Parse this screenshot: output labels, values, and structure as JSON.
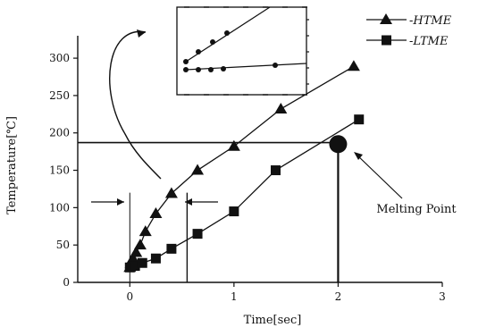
{
  "chart_data": {
    "type": "line",
    "title": "",
    "xlabel": "Time[sec]",
    "ylabel": "Temperature[℃]",
    "xlim": [
      -0.5,
      3
    ],
    "ylim": [
      0,
      330
    ],
    "x_ticks": [
      0,
      1,
      2,
      3
    ],
    "y_ticks": [
      0,
      50,
      100,
      150,
      200,
      250,
      300
    ],
    "grid": false,
    "legend_position": "top-right",
    "series": [
      {
        "name": "-HTME",
        "marker": "triangle",
        "color": "#111111",
        "x": [
          0,
          0.01,
          0.03,
          0.06,
          0.1,
          0.15,
          0.25,
          0.4,
          0.65,
          1.0,
          1.45,
          2.15
        ],
        "y": [
          20,
          25,
          32,
          40,
          50,
          68,
          92,
          119,
          150,
          182,
          232,
          289
        ]
      },
      {
        "name": "-LTME",
        "marker": "square",
        "color": "#111111",
        "x": [
          0,
          0.05,
          0.12,
          0.25,
          0.4,
          0.65,
          1.0,
          1.4,
          2.2
        ],
        "y": [
          20,
          22,
          26,
          32,
          45,
          65,
          95,
          150,
          218
        ]
      }
    ],
    "annotations": [
      {
        "text": "Melting Point",
        "x": 2.0,
        "y": 185,
        "marker": "circle"
      }
    ],
    "reference_lines": {
      "horizontal_y": 187,
      "vertical_x": 2.0,
      "marker_x": 0.55
    },
    "inset": {
      "shown": true,
      "description_series": 2
    }
  }
}
